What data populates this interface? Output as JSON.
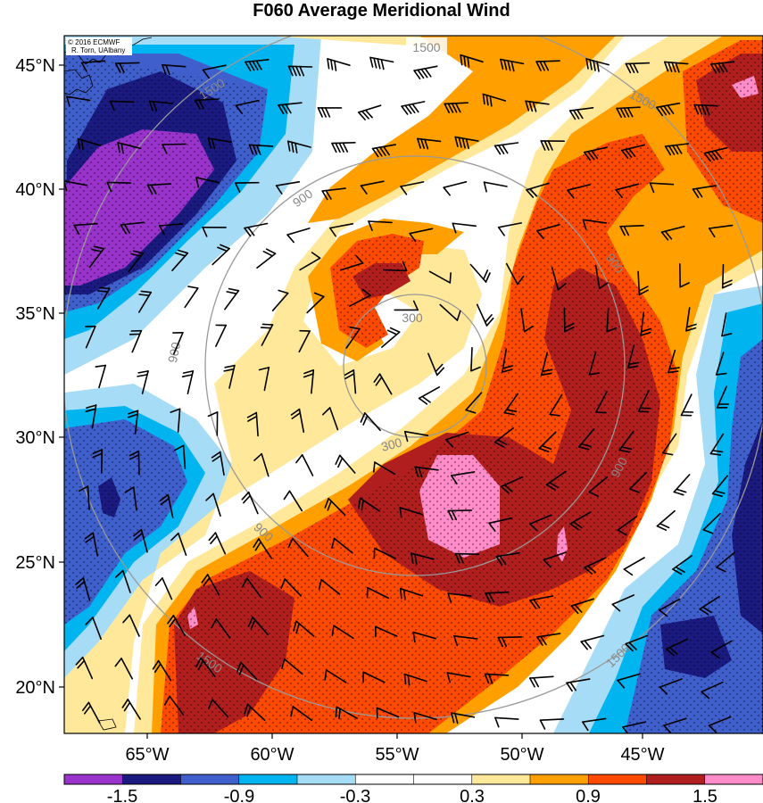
{
  "title": "F060 Average Meridional Wind",
  "credit": {
    "line1": "© 2016 ECMWF",
    "line2": "R. Torn, UAlbany"
  },
  "lat_labels": [
    "45°N",
    "40°N",
    "35°N",
    "30°N",
    "25°N",
    "20°N"
  ],
  "lon_labels": [
    "65°W",
    "60°W",
    "55°W",
    "50°W",
    "45°W"
  ],
  "ring_labels": [
    "1500",
    "1500",
    "1500",
    "1500",
    "900",
    "900",
    "900",
    "900",
    "900",
    "300",
    "300",
    "1500"
  ],
  "colorbar": {
    "tick_labels": [
      "-1.5",
      "-0.9",
      "-0.3",
      "0.3",
      "0.9",
      "1.5"
    ],
    "colors": [
      "#9933cc",
      "#1a1a80",
      "#3f5fcc",
      "#00b4f0",
      "#a6dcf5",
      "#ffffff",
      "#ffffff",
      "#ffe89a",
      "#ffa000",
      "#ff4a00",
      "#b01e1e",
      "#ff8cc8"
    ]
  },
  "palette": {
    "purple": "#9933cc",
    "navy": "#1a1a80",
    "blue": "#3f5fcc",
    "cyan": "#00b4f0",
    "lightblue": "#a6dcf5",
    "white": "#ffffff",
    "yellow": "#ffe89a",
    "orange": "#ffa000",
    "redorange": "#ff4a00",
    "darkred": "#b01e1e",
    "pink": "#ff8cc8"
  }
}
